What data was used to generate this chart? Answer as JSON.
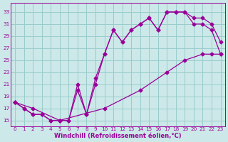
{
  "bg_color": "#cce8e8",
  "grid_color": "#99cccc",
  "line_color": "#990099",
  "xlabel": "Windchill (Refroidissement éolien,°C)",
  "xlim": [
    -0.5,
    23.5
  ],
  "ylim": [
    14.0,
    34.5
  ],
  "xticks": [
    0,
    1,
    2,
    3,
    4,
    5,
    6,
    7,
    8,
    9,
    10,
    11,
    12,
    13,
    14,
    15,
    16,
    17,
    18,
    19,
    20,
    21,
    22,
    23
  ],
  "yticks": [
    15,
    17,
    19,
    21,
    23,
    25,
    27,
    29,
    31,
    33
  ],
  "line1_x": [
    0,
    1,
    2,
    3,
    4,
    5,
    6,
    7,
    8,
    9,
    10,
    11,
    12,
    13,
    14,
    15,
    16,
    17,
    18,
    19,
    20,
    21,
    22,
    23
  ],
  "line1_y": [
    18,
    17,
    16,
    16,
    15,
    15,
    15,
    20,
    16,
    21,
    26,
    30,
    28,
    30,
    31,
    32,
    30,
    33,
    33,
    33,
    31,
    31,
    30,
    26
  ],
  "line2_x": [
    0,
    1,
    2,
    3,
    4,
    5,
    6,
    7,
    8,
    9,
    10,
    11,
    12,
    13,
    14,
    15,
    16,
    17,
    18,
    19,
    20,
    21,
    22,
    23
  ],
  "line2_y": [
    18,
    17,
    16,
    16,
    15,
    15,
    15,
    21,
    16,
    22,
    26,
    30,
    28,
    30,
    31,
    32,
    30,
    33,
    33,
    33,
    32,
    32,
    31,
    28
  ],
  "line3_x": [
    0,
    2,
    5,
    10,
    14,
    17,
    19,
    21,
    22,
    23
  ],
  "line3_y": [
    18,
    17,
    15,
    17,
    20,
    23,
    25,
    26,
    26,
    26
  ]
}
